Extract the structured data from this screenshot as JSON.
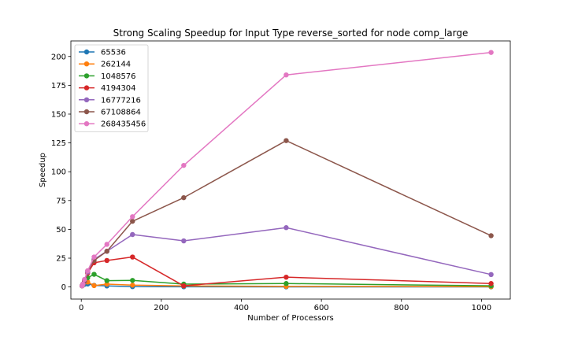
{
  "chart_data": {
    "type": "line",
    "title": "Strong Scaling Speedup for Input Type reverse_sorted for node comp_large",
    "xlabel": "Number of Processors",
    "ylabel": "Speedup",
    "xlim": [
      -26,
      1072
    ],
    "ylim": [
      -10.5,
      213.5
    ],
    "xticks": [
      0,
      200,
      400,
      600,
      800,
      1000
    ],
    "yticks": [
      0,
      25,
      50,
      75,
      100,
      125,
      150,
      175,
      200
    ],
    "x": [
      2,
      4,
      8,
      16,
      32,
      64,
      128,
      256,
      512,
      1024
    ],
    "legend_position": "top-left",
    "grid": false,
    "series": [
      {
        "name": "65536",
        "color": "#1f77b4",
        "values": [
          1.0,
          1.7,
          2.3,
          2.6,
          1.4,
          0.9,
          0.3,
          0.2,
          0.1,
          0.1
        ]
      },
      {
        "name": "262144",
        "color": "#ff7f0e",
        "values": [
          1.0,
          2.0,
          4.2,
          4.3,
          1.2,
          2.5,
          1.6,
          0.9,
          0.5,
          0.3
        ]
      },
      {
        "name": "1048576",
        "color": "#2ca02c",
        "values": [
          1.0,
          2.3,
          4.7,
          8.0,
          11.0,
          5.5,
          5.7,
          2.5,
          3.0,
          1.0
        ]
      },
      {
        "name": "4194304",
        "color": "#d62728",
        "values": [
          1.0,
          2.4,
          4.8,
          12.0,
          21.0,
          23.0,
          26.0,
          1.0,
          8.5,
          3.0
        ]
      },
      {
        "name": "16777216",
        "color": "#9467bd",
        "values": [
          1.0,
          2.3,
          5.0,
          13.0,
          24.0,
          31.0,
          45.5,
          40.0,
          51.5,
          10.8
        ]
      },
      {
        "name": "67108864",
        "color": "#8c564b",
        "values": [
          1.0,
          2.5,
          5.5,
          14.0,
          23.0,
          31.0,
          57.0,
          77.5,
          127.0,
          44.5
        ]
      },
      {
        "name": "268435456",
        "color": "#e377c2",
        "values": [
          1.0,
          2.6,
          6.5,
          14.0,
          26.0,
          37.0,
          61.0,
          105.5,
          184.0,
          203.5
        ]
      }
    ]
  }
}
